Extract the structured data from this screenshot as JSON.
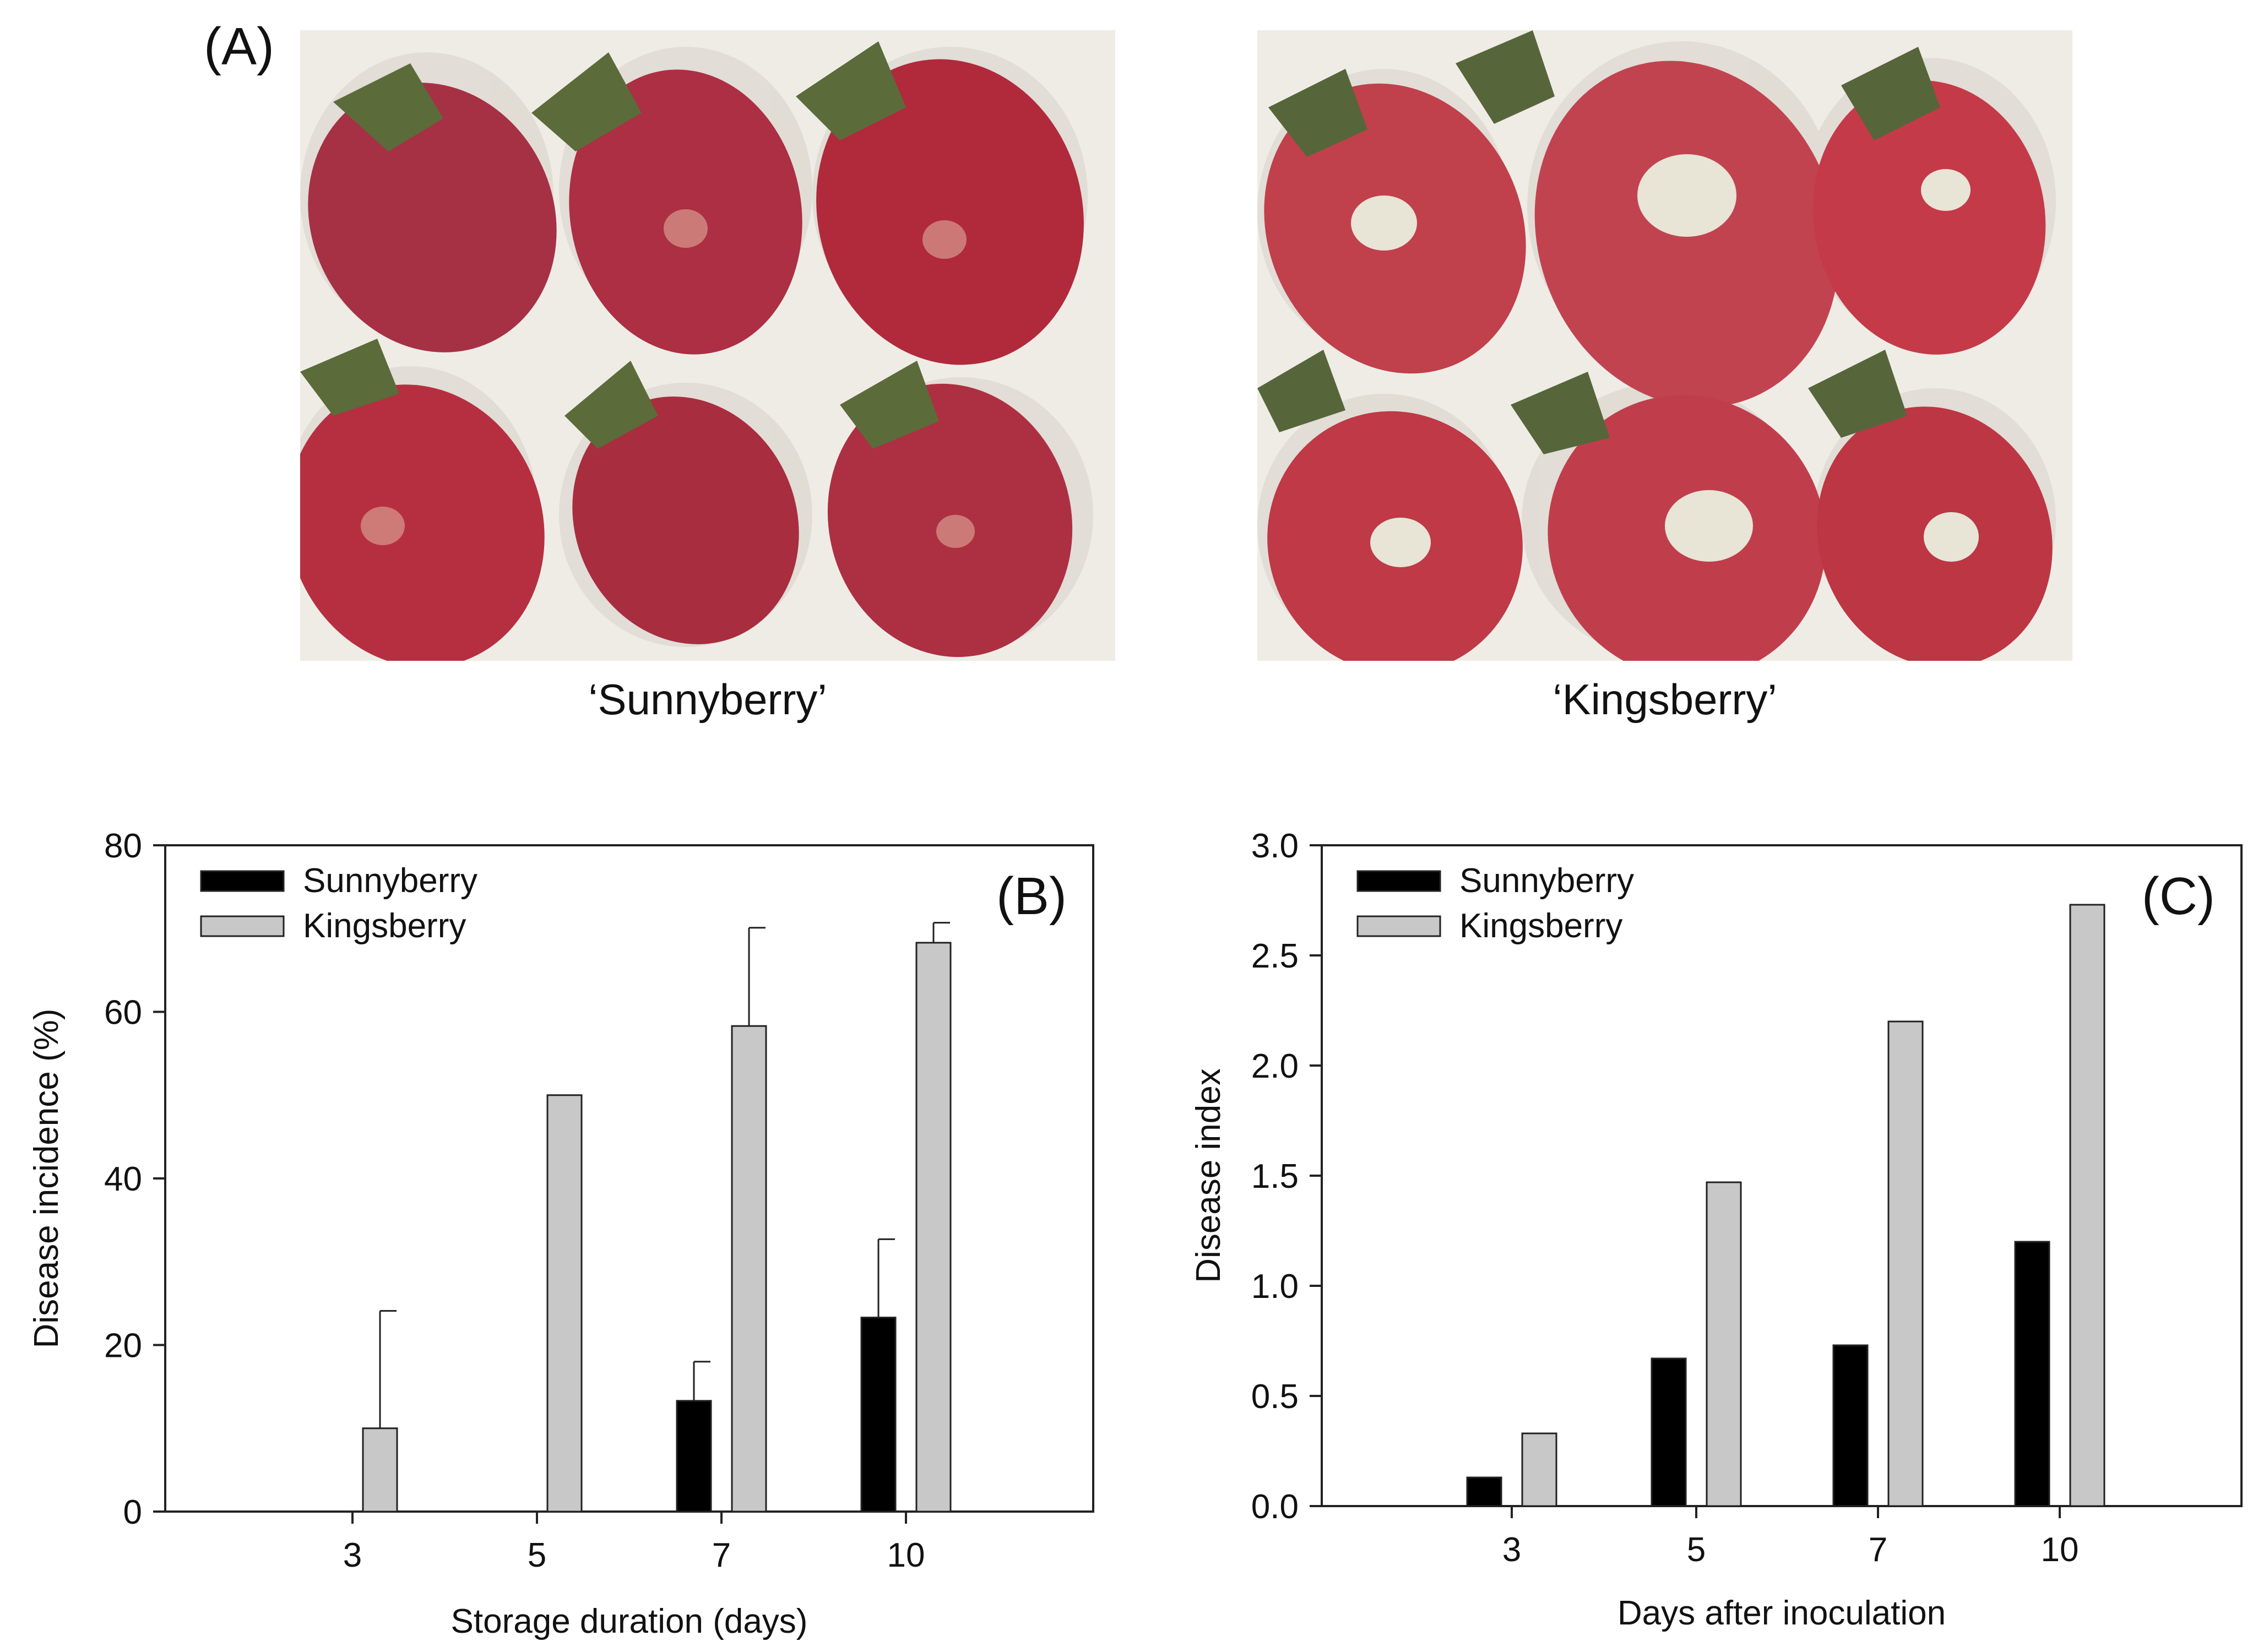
{
  "panel_a": {
    "label": "(A)",
    "left_caption": "‘Sunnyberry’",
    "right_caption": "‘Kingsberry’"
  },
  "colors": {
    "sunnyberry": "#000000",
    "kingsberry": "#c8c8c8",
    "berry": "#b8323f",
    "berry_dark": "#8f1f2e",
    "leaf": "#5b6b3a",
    "tray": "#efece6",
    "mold": "#e8e4d6"
  },
  "chart_data": [
    {
      "type": "bar",
      "panel_label": "(B)",
      "title": "",
      "xlabel": "Storage duration (days)",
      "ylabel": "Disease incidence (%)",
      "categories": [
        "3",
        "5",
        "7",
        "10"
      ],
      "ylim": [
        0,
        80
      ],
      "yticks": [
        0,
        20,
        40,
        60,
        80
      ],
      "legend_position": "top-left",
      "series": [
        {
          "name": "Sunnyberry",
          "color": "#000000",
          "values": [
            0,
            0,
            13.3,
            23.3
          ],
          "errors": [
            0,
            0,
            4.7,
            9.4
          ]
        },
        {
          "name": "Kingsberry",
          "color": "#c8c8c8",
          "values": [
            10,
            50,
            58.3,
            68.3
          ],
          "errors": [
            14.1,
            0,
            11.8,
            2.4
          ]
        }
      ]
    },
    {
      "type": "bar",
      "panel_label": "(C)",
      "title": "",
      "xlabel": "Days after inoculation",
      "ylabel": "Disease index",
      "categories": [
        "3",
        "5",
        "7",
        "10"
      ],
      "ylim": [
        0,
        3.0
      ],
      "yticks": [
        "0.0",
        "0.5",
        "1.0",
        "1.5",
        "2.0",
        "2.5",
        "3.0"
      ],
      "legend_position": "top-left",
      "series": [
        {
          "name": "Sunnyberry",
          "color": "#000000",
          "values": [
            0.13,
            0.67,
            0.73,
            1.2
          ]
        },
        {
          "name": "Kingsberry",
          "color": "#c8c8c8",
          "values": [
            0.33,
            1.47,
            2.2,
            2.73
          ]
        }
      ]
    }
  ]
}
